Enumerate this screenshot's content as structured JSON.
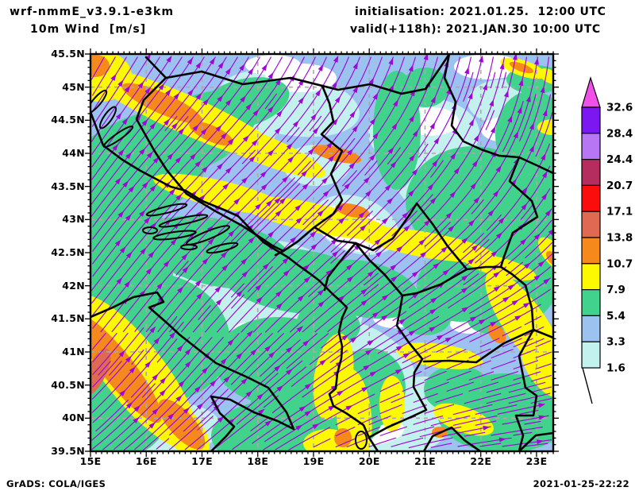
{
  "header": {
    "model": "wrf-nmmE_v3.9.1-e3km",
    "field": "10m Wind  [m/s]",
    "init": "initialisation: 2021.01.25.  12:00 UTC",
    "valid": "valid(+118h): 2021.JAN.30 10:00 UTC"
  },
  "axes": {
    "lat_labels": [
      "45.5N",
      "45N",
      "44.5N",
      "44N",
      "43.5N",
      "43N",
      "42.5N",
      "42N",
      "41.5N",
      "41N",
      "40.5N",
      "40N",
      "39.5N"
    ],
    "lon_labels": [
      "15E",
      "16E",
      "17E",
      "18E",
      "19E",
      "20E",
      "21E",
      "22E",
      "23E"
    ]
  },
  "legend": {
    "levels": [
      "32.6",
      "28.4",
      "24.4",
      "20.7",
      "17.1",
      "13.8",
      "10.7",
      "7.9",
      "5.4",
      "3.3",
      "1.6"
    ],
    "segment_colors": [
      "#7d17f2",
      "#b777f5",
      "#b52c5e",
      "#fb0d0d",
      "#df6a51",
      "#f5891b",
      "#fdf900",
      "#41d38c",
      "#9cc3f0",
      "#c2f1ee"
    ],
    "tip_color": "#f04fe8"
  },
  "footer": {
    "credit": "GrADS: COLA/IGES",
    "timestamp": "2021-01-25-22:22"
  },
  "palette": {
    "stream": "#9f07d6",
    "border": "#000000",
    "grid": "#a9a9a9",
    "base_blue": "#9cc3f0",
    "pale_cyan": "#c2f1ee",
    "green": "#41d38c",
    "yellow": "#fdf900",
    "orange": "#f5891b",
    "salmon": "#df6a51",
    "white": "#ffffff"
  },
  "chart_data": {
    "type": "heatmap",
    "subtype": "streamline-wind-speed-map",
    "variable": "10m Wind",
    "units": "m/s",
    "model": "wrf-nmmE_v3.9.1-e3km",
    "initialisation": "2021.01.25. 12:00 UTC",
    "valid": "2021.JAN.30 10:00 UTC",
    "lead_hours": 118,
    "lon_range_deg_e": [
      15,
      23.3
    ],
    "lat_range_deg_n": [
      39.5,
      45.5
    ],
    "speed_shading_levels_ms": [
      1.6,
      3.3,
      5.4,
      7.9,
      10.7,
      13.8,
      17.1,
      20.7,
      24.4,
      28.4,
      32.6
    ],
    "flow_summary": "streamlines generally south-to-north over the Adriatic and west Balkans, turning west-to-east over the southern and eastern Balkans",
    "legend_position": "right",
    "grid": "dashed gray graticule every 1 degree"
  }
}
